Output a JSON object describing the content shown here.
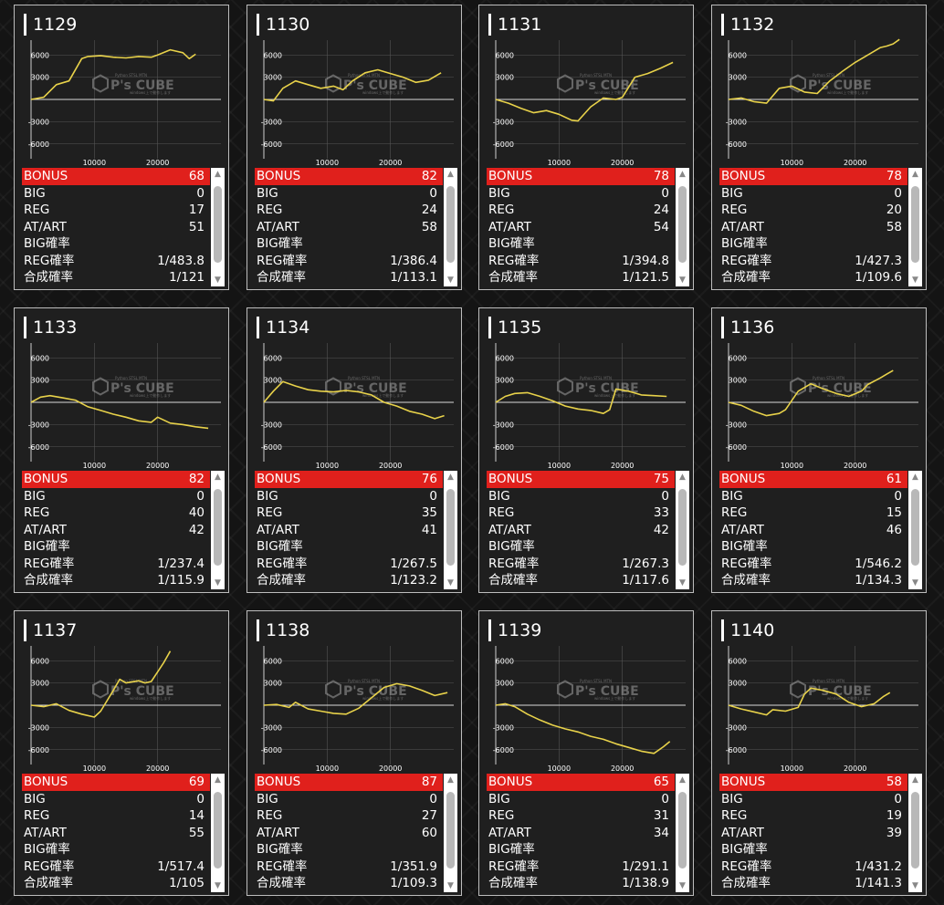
{
  "chart_common": {
    "type": "line",
    "x_ticks": [
      "10000",
      "20000"
    ],
    "y_ticks": [
      "6000",
      "3000",
      "-3000",
      "-6000"
    ],
    "xlim": [
      0,
      30000
    ],
    "ylim": [
      -8000,
      8000
    ],
    "line_color": "#e8d24a",
    "watermark_text": "P's CUBE",
    "watermark_small": "Python STSL MTN",
    "watermark_small2": "windows上で動作します"
  },
  "stat_labels": {
    "bonus": "BONUS",
    "big": "BIG",
    "reg": "REG",
    "at_art": "AT/ART",
    "big_rate": "BIG確率",
    "reg_rate": "REG確率",
    "total_rate": "合成確率"
  },
  "scroll_icons": {
    "up": "▲",
    "down": "▼"
  },
  "colors": {
    "bonus_bar": "#e0201c",
    "card_bg": "#1f1f1f",
    "card_border": "#bdbdbd",
    "line": "#e8d24a"
  },
  "machines": [
    {
      "id": "1129",
      "bonus": "68",
      "big": "0",
      "reg": "17",
      "at_art": "51",
      "big_rate": "",
      "reg_rate": "1/483.8",
      "total_rate": "1/121",
      "chart_data": {
        "x": [
          0,
          2000,
          4000,
          6000,
          8000,
          9000,
          11000,
          13000,
          15000,
          17000,
          19000,
          20000,
          22000,
          24000,
          25000,
          26000
        ],
        "y": [
          0,
          300,
          2000,
          2500,
          5500,
          5800,
          5900,
          5700,
          5600,
          5800,
          5700,
          6000,
          6700,
          6300,
          5500,
          6100
        ]
      }
    },
    {
      "id": "1130",
      "bonus": "82",
      "big": "0",
      "reg": "24",
      "at_art": "58",
      "big_rate": "",
      "reg_rate": "1/386.4",
      "total_rate": "1/113.1",
      "chart_data": {
        "x": [
          0,
          1500,
          3000,
          5000,
          7000,
          9000,
          11000,
          12500,
          14000,
          16000,
          18000,
          20000,
          22000,
          24000,
          26000,
          28000
        ],
        "y": [
          0,
          -200,
          1500,
          2500,
          2000,
          1500,
          1800,
          1300,
          2500,
          3600,
          4000,
          3500,
          3000,
          2300,
          2600,
          3600
        ]
      }
    },
    {
      "id": "1131",
      "bonus": "78",
      "big": "0",
      "reg": "24",
      "at_art": "54",
      "big_rate": "",
      "reg_rate": "1/394.8",
      "total_rate": "1/121.5",
      "chart_data": {
        "x": [
          0,
          2000,
          4000,
          6000,
          8000,
          10000,
          12000,
          13000,
          15000,
          17000,
          19000,
          20000,
          22000,
          24000,
          26000,
          28000
        ],
        "y": [
          0,
          -500,
          -1200,
          -1800,
          -1500,
          -2000,
          -2800,
          -2900,
          -1000,
          200,
          0,
          300,
          3000,
          3500,
          4200,
          5000
        ]
      }
    },
    {
      "id": "1132",
      "bonus": "78",
      "big": "0",
      "reg": "20",
      "at_art": "58",
      "big_rate": "",
      "reg_rate": "1/427.3",
      "total_rate": "1/109.6",
      "chart_data": {
        "x": [
          0,
          2000,
          4000,
          6000,
          8000,
          10000,
          12000,
          14000,
          16000,
          18000,
          20000,
          22000,
          24000,
          25000,
          26000,
          27000
        ],
        "y": [
          0,
          200,
          -300,
          -500,
          1500,
          1800,
          1000,
          800,
          2500,
          3800,
          5000,
          6000,
          7000,
          7200,
          7500,
          8100
        ]
      }
    },
    {
      "id": "1133",
      "bonus": "82",
      "big": "0",
      "reg": "40",
      "at_art": "42",
      "big_rate": "",
      "reg_rate": "1/237.4",
      "total_rate": "1/115.9",
      "chart_data": {
        "x": [
          0,
          1500,
          3000,
          5000,
          7000,
          9000,
          11000,
          13000,
          15000,
          17000,
          19000,
          20000,
          22000,
          24000,
          26000,
          28000
        ],
        "y": [
          0,
          700,
          900,
          600,
          300,
          -600,
          -1100,
          -1600,
          -2000,
          -2500,
          -2700,
          -2000,
          -2800,
          -3000,
          -3300,
          -3500
        ]
      }
    },
    {
      "id": "1134",
      "bonus": "76",
      "big": "0",
      "reg": "35",
      "at_art": "41",
      "big_rate": "",
      "reg_rate": "1/267.5",
      "total_rate": "1/123.2",
      "chart_data": {
        "x": [
          0,
          1500,
          3000,
          5000,
          7000,
          9000,
          11000,
          13000,
          15000,
          17000,
          19000,
          21000,
          23000,
          25000,
          27000,
          28500
        ],
        "y": [
          0,
          1500,
          2800,
          2200,
          1700,
          1500,
          1400,
          1600,
          1400,
          1000,
          0,
          -500,
          -1200,
          -1600,
          -2200,
          -1800
        ]
      }
    },
    {
      "id": "1135",
      "bonus": "75",
      "big": "0",
      "reg": "33",
      "at_art": "42",
      "big_rate": "",
      "reg_rate": "1/267.3",
      "total_rate": "1/117.6",
      "chart_data": {
        "x": [
          0,
          1500,
          3000,
          5000,
          7000,
          9000,
          11000,
          13000,
          15000,
          17000,
          18000,
          19000,
          21000,
          23000,
          25000,
          27000
        ],
        "y": [
          0,
          800,
          1200,
          1300,
          800,
          200,
          -500,
          -900,
          -1100,
          -1500,
          -1000,
          1800,
          1500,
          1000,
          900,
          800
        ]
      }
    },
    {
      "id": "1136",
      "bonus": "61",
      "big": "0",
      "reg": "15",
      "at_art": "46",
      "big_rate": "",
      "reg_rate": "1/546.2",
      "total_rate": "1/134.3",
      "chart_data": {
        "x": [
          0,
          2000,
          4000,
          6000,
          8000,
          9000,
          11000,
          13000,
          15000,
          17000,
          19000,
          21000,
          22000,
          24000,
          25000,
          26000
        ],
        "y": [
          0,
          -400,
          -1200,
          -1800,
          -1500,
          -1000,
          1500,
          2500,
          1800,
          1200,
          800,
          1500,
          2400,
          3300,
          3800,
          4300
        ]
      }
    },
    {
      "id": "1137",
      "bonus": "69",
      "big": "0",
      "reg": "14",
      "at_art": "55",
      "big_rate": "",
      "reg_rate": "1/517.4",
      "total_rate": "1/105",
      "chart_data": {
        "x": [
          0,
          2000,
          4000,
          6000,
          8000,
          10000,
          11000,
          13000,
          14000,
          15000,
          17000,
          18000,
          19000,
          20000,
          21000,
          22000
        ],
        "y": [
          0,
          -200,
          200,
          -700,
          -1200,
          -1600,
          -800,
          2000,
          3500,
          3000,
          3300,
          3000,
          3200,
          4500,
          5800,
          7300
        ]
      }
    },
    {
      "id": "1138",
      "bonus": "87",
      "big": "0",
      "reg": "27",
      "at_art": "60",
      "big_rate": "",
      "reg_rate": "1/351.9",
      "total_rate": "1/109.3",
      "chart_data": {
        "x": [
          0,
          2000,
          4000,
          5000,
          7000,
          9000,
          11000,
          13000,
          15000,
          17000,
          19000,
          21000,
          23000,
          25000,
          27000,
          29000
        ],
        "y": [
          0,
          100,
          -300,
          400,
          -500,
          -800,
          -1100,
          -1200,
          -400,
          1000,
          2400,
          2900,
          2600,
          2000,
          1300,
          1700
        ]
      }
    },
    {
      "id": "1139",
      "bonus": "65",
      "big": "0",
      "reg": "31",
      "at_art": "34",
      "big_rate": "",
      "reg_rate": "1/291.1",
      "total_rate": "1/138.9",
      "chart_data": {
        "x": [
          0,
          1500,
          3000,
          5000,
          7000,
          9000,
          11000,
          13000,
          15000,
          17000,
          19000,
          21000,
          23000,
          25000,
          26500,
          27500
        ],
        "y": [
          0,
          200,
          -200,
          -1200,
          -2000,
          -2700,
          -3200,
          -3600,
          -4200,
          -4600,
          -5200,
          -5700,
          -6200,
          -6500,
          -5600,
          -4900
        ]
      }
    },
    {
      "id": "1140",
      "bonus": "58",
      "big": "0",
      "reg": "19",
      "at_art": "39",
      "big_rate": "",
      "reg_rate": "1/431.2",
      "total_rate": "1/141.3",
      "chart_data": {
        "x": [
          0,
          2000,
          4000,
          6000,
          7000,
          9000,
          11000,
          12000,
          13000,
          15000,
          17000,
          19000,
          21000,
          23000,
          24500,
          25500
        ],
        "y": [
          0,
          -500,
          -900,
          -1300,
          -600,
          -800,
          -300,
          1500,
          2300,
          2000,
          1500,
          400,
          -200,
          200,
          1200,
          1700
        ]
      }
    }
  ]
}
